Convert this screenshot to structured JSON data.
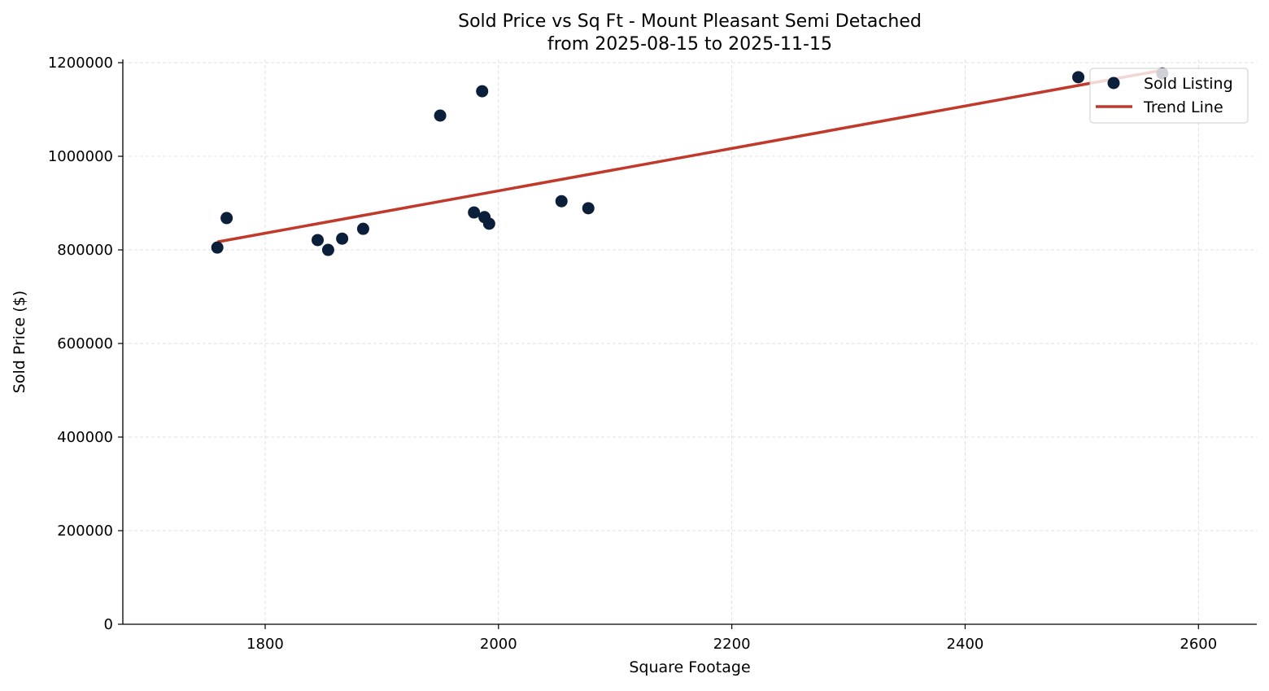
{
  "chart_data": {
    "type": "scatter",
    "title": "Sold Price vs Sq Ft - Mount Pleasant Semi Detached",
    "subtitle": "from 2025-08-15 to 2025-11-15",
    "xlabel": "Square Footage",
    "ylabel": "Sold Price ($)",
    "xlim": [
      1678,
      2650
    ],
    "ylim": [
      0,
      1207000
    ],
    "xticks": [
      1800,
      2000,
      2200,
      2400,
      2600
    ],
    "yticks": [
      0,
      200000,
      400000,
      600000,
      800000,
      1000000,
      1200000
    ],
    "grid": true,
    "legend_position": "top-right",
    "colors": {
      "points": "#0b1f3a",
      "trend": "#c0392b",
      "grid": "#d9d9d9"
    },
    "series": [
      {
        "name": "Sold Listing",
        "type": "scatter",
        "points": [
          [
            1759,
            805000
          ],
          [
            1767,
            868000
          ],
          [
            1845,
            821000
          ],
          [
            1854,
            800000
          ],
          [
            1866,
            824000
          ],
          [
            1884,
            845000
          ],
          [
            1950,
            1087000
          ],
          [
            1986,
            1139000
          ],
          [
            1979,
            880000
          ],
          [
            1988,
            870000
          ],
          [
            1992,
            856000
          ],
          [
            2054,
            904000
          ],
          [
            2077,
            889000
          ],
          [
            2497,
            1169000
          ],
          [
            2569,
            1177000
          ]
        ]
      },
      {
        "name": "Trend Line",
        "type": "line",
        "points": [
          [
            1759,
            817000
          ],
          [
            2569,
            1184000
          ]
        ]
      }
    ]
  }
}
